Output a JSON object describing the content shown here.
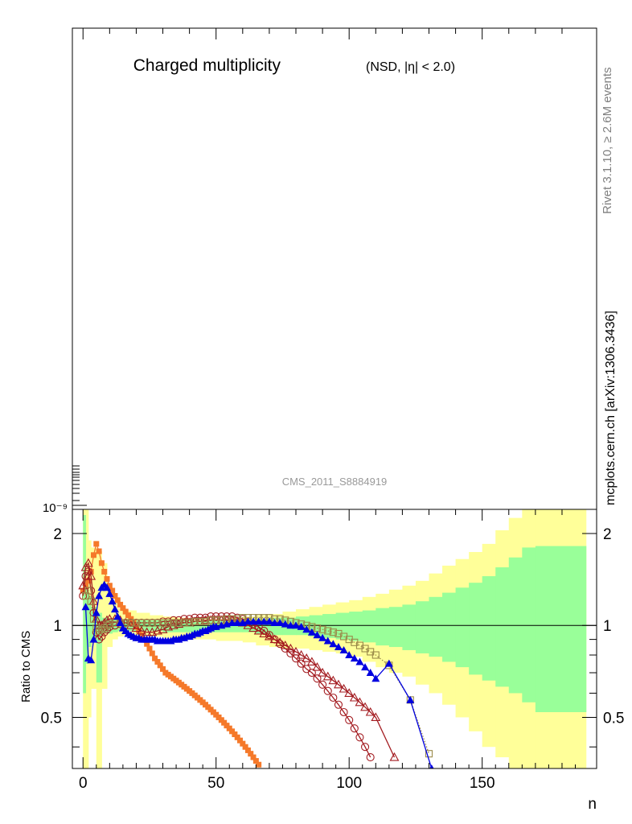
{
  "main_panel": {
    "title": "Charged multiplicity",
    "subtitle": "(NSD, |η| < 2.0)",
    "side_label_top": "Rivet 3.1.10, ≥ 2.6M events",
    "side_label_bottom": "mcplots.cern.ch [arXiv:1306.3436]",
    "watermark": "CMS_2011_S8884919",
    "y_tick_label": "10⁻⁹"
  },
  "chart_data": {
    "type": "line",
    "xlabel": "n",
    "ylabel": "Ratio to CMS",
    "xlim": [
      -4,
      193
    ],
    "ylim": [
      0.34,
      2.4
    ],
    "y_scale": "log",
    "x_ticks": [
      0,
      50,
      100,
      150
    ],
    "x_tick_labels": [
      "0",
      "50",
      "100",
      "150"
    ],
    "y_ticks": [
      0.5,
      1,
      2
    ],
    "y_tick_labels": [
      "0.5",
      "1",
      "2"
    ],
    "reference_line": 1,
    "colors": {
      "band_outer": "#ffff99",
      "band_inner": "#99ff99",
      "orange": "#f5792a",
      "darkred": "#a31b20",
      "olive": "#9a8a4a",
      "blue": "#0000e0",
      "frame": "#000000"
    },
    "bands": {
      "edges": [
        0,
        1,
        2,
        3,
        5,
        7,
        9,
        11,
        13,
        15,
        20,
        25,
        30,
        35,
        40,
        45,
        50,
        55,
        60,
        65,
        70,
        75,
        80,
        85,
        90,
        95,
        100,
        105,
        110,
        115,
        120,
        125,
        130,
        135,
        140,
        145,
        150,
        155,
        160,
        165,
        170,
        189
      ],
      "outer_lo": [
        0.34,
        0.34,
        0.5,
        0.62,
        0.34,
        0.62,
        0.85,
        0.9,
        0.92,
        0.93,
        0.93,
        0.92,
        0.91,
        0.91,
        0.9,
        0.9,
        0.89,
        0.89,
        0.88,
        0.86,
        0.85,
        0.84,
        0.84,
        0.83,
        0.82,
        0.81,
        0.79,
        0.76,
        0.73,
        0.7,
        0.68,
        0.64,
        0.6,
        0.55,
        0.5,
        0.45,
        0.4,
        0.37,
        0.34,
        0.34,
        0.34
      ],
      "outer_hi": [
        2.4,
        2.4,
        1.9,
        1.8,
        1.75,
        1.6,
        1.3,
        1.2,
        1.14,
        1.12,
        1.1,
        1.08,
        1.07,
        1.06,
        1.05,
        1.05,
        1.05,
        1.06,
        1.07,
        1.08,
        1.09,
        1.11,
        1.13,
        1.15,
        1.17,
        1.19,
        1.21,
        1.24,
        1.27,
        1.31,
        1.35,
        1.4,
        1.48,
        1.57,
        1.65,
        1.74,
        1.85,
        2.05,
        2.25,
        2.4,
        2.4
      ],
      "inner_lo": [
        0.6,
        0.75,
        0.85,
        0.9,
        0.65,
        0.95,
        0.94,
        0.95,
        0.96,
        0.96,
        0.96,
        0.96,
        0.95,
        0.95,
        0.95,
        0.95,
        0.95,
        0.95,
        0.95,
        0.94,
        0.93,
        0.93,
        0.93,
        0.92,
        0.91,
        0.9,
        0.89,
        0.88,
        0.86,
        0.85,
        0.83,
        0.81,
        0.79,
        0.76,
        0.73,
        0.69,
        0.66,
        0.63,
        0.6,
        0.56,
        0.52
      ],
      "inner_hi": [
        2.3,
        1.4,
        1.25,
        1.15,
        1.1,
        1.06,
        1.05,
        1.05,
        1.04,
        1.04,
        1.04,
        1.04,
        1.04,
        1.04,
        1.04,
        1.04,
        1.04,
        1.04,
        1.05,
        1.05,
        1.06,
        1.06,
        1.07,
        1.08,
        1.09,
        1.1,
        1.11,
        1.12,
        1.14,
        1.15,
        1.17,
        1.2,
        1.24,
        1.28,
        1.33,
        1.38,
        1.45,
        1.55,
        1.67,
        1.8,
        1.82
      ]
    },
    "series": [
      {
        "key": "orange",
        "marker": "filled-square",
        "style": "solid",
        "x": [
          0,
          1,
          2,
          3,
          4,
          5,
          6,
          7,
          8,
          9,
          10,
          11,
          12,
          13,
          14,
          15,
          16,
          17,
          18,
          19,
          20,
          21,
          22,
          23,
          24,
          25,
          26,
          27,
          28,
          29,
          30,
          31,
          32,
          33,
          34,
          35,
          36,
          37,
          38,
          39,
          40,
          41,
          42,
          43,
          44,
          45,
          46,
          47,
          48,
          49,
          50,
          51,
          52,
          53,
          54,
          55,
          56,
          57,
          58,
          59,
          60,
          61,
          62,
          63,
          64,
          65,
          66
        ],
        "y": [
          1.3,
          1.35,
          1.4,
          1.5,
          1.7,
          1.85,
          1.75,
          1.6,
          1.5,
          1.42,
          1.35,
          1.3,
          1.25,
          1.21,
          1.17,
          1.14,
          1.11,
          1.08,
          1.05,
          1.02,
          0.99,
          0.96,
          0.93,
          0.9,
          0.87,
          0.84,
          0.81,
          0.78,
          0.76,
          0.74,
          0.72,
          0.7,
          0.69,
          0.68,
          0.67,
          0.66,
          0.65,
          0.64,
          0.63,
          0.62,
          0.61,
          0.6,
          0.59,
          0.58,
          0.57,
          0.56,
          0.55,
          0.54,
          0.53,
          0.52,
          0.51,
          0.5,
          0.49,
          0.48,
          0.47,
          0.46,
          0.45,
          0.44,
          0.43,
          0.42,
          0.41,
          0.4,
          0.39,
          0.38,
          0.37,
          0.36,
          0.35
        ]
      },
      {
        "key": "darkred",
        "marker": "open-triangle",
        "style": "solid",
        "x": [
          0,
          1,
          2,
          3,
          4,
          5,
          6,
          7,
          8,
          9,
          10,
          12,
          14,
          16,
          18,
          20,
          22,
          24,
          26,
          28,
          30,
          32,
          34,
          36,
          38,
          40,
          42,
          44,
          46,
          48,
          50,
          52,
          54,
          56,
          58,
          60,
          62,
          64,
          66,
          68,
          70,
          72,
          74,
          76,
          78,
          80,
          82,
          84,
          86,
          88,
          90,
          92,
          94,
          96,
          98,
          100,
          102,
          104,
          106,
          108,
          110,
          117
        ],
        "y": [
          1.35,
          1.55,
          1.6,
          1.45,
          1.2,
          1.05,
          1.0,
          1.0,
          1.02,
          1.04,
          1.05,
          1.05,
          1.04,
          1.02,
          1.0,
          0.98,
          0.96,
          0.95,
          0.95,
          0.96,
          0.97,
          0.99,
          1.0,
          1.01,
          1.02,
          1.02,
          1.03,
          1.03,
          1.04,
          1.04,
          1.04,
          1.04,
          1.04,
          1.04,
          1.03,
          1.02,
          1.0,
          0.98,
          0.96,
          0.94,
          0.92,
          0.9,
          0.88,
          0.86,
          0.84,
          0.82,
          0.8,
          0.78,
          0.76,
          0.73,
          0.7,
          0.68,
          0.66,
          0.64,
          0.62,
          0.6,
          0.58,
          0.56,
          0.54,
          0.52,
          0.5,
          0.37
        ]
      },
      {
        "key": "darkred",
        "marker": "open-circle",
        "style": "solid",
        "x": [
          0,
          1,
          2,
          3,
          4,
          5,
          6,
          7,
          8,
          9,
          10,
          12,
          14,
          16,
          18,
          20,
          22,
          24,
          26,
          28,
          30,
          32,
          34,
          36,
          38,
          40,
          42,
          44,
          46,
          48,
          50,
          52,
          54,
          56,
          58,
          60,
          62,
          64,
          66,
          68,
          70,
          72,
          74,
          76,
          78,
          80,
          82,
          84,
          86,
          88,
          90,
          92,
          94,
          96,
          98,
          100,
          102,
          104,
          106,
          108
        ],
        "y": [
          1.25,
          1.45,
          1.5,
          1.3,
          1.1,
          0.95,
          0.9,
          0.92,
          0.95,
          0.97,
          0.99,
          1.0,
          1.01,
          1.02,
          1.02,
          1.02,
          1.02,
          1.02,
          1.02,
          1.02,
          1.03,
          1.03,
          1.04,
          1.04,
          1.05,
          1.05,
          1.06,
          1.06,
          1.06,
          1.07,
          1.07,
          1.07,
          1.07,
          1.07,
          1.06,
          1.05,
          1.03,
          1.01,
          0.99,
          0.96,
          0.93,
          0.9,
          0.87,
          0.84,
          0.81,
          0.78,
          0.75,
          0.72,
          0.7,
          0.67,
          0.64,
          0.61,
          0.58,
          0.55,
          0.52,
          0.49,
          0.46,
          0.43,
          0.4,
          0.37
        ]
      },
      {
        "key": "olive",
        "marker": "open-square",
        "style": "dotted",
        "x": [
          1,
          2,
          3,
          4,
          5,
          6,
          7,
          8,
          9,
          10,
          12,
          14,
          16,
          18,
          20,
          22,
          24,
          26,
          28,
          30,
          32,
          34,
          36,
          38,
          40,
          42,
          44,
          46,
          48,
          50,
          52,
          54,
          56,
          58,
          60,
          62,
          64,
          66,
          68,
          70,
          72,
          74,
          76,
          78,
          80,
          82,
          84,
          86,
          88,
          90,
          92,
          94,
          96,
          98,
          100,
          102,
          104,
          106,
          108,
          110,
          115,
          123,
          130
        ],
        "y": [
          1.25,
          1.3,
          1.2,
          1.05,
          0.98,
          0.96,
          0.97,
          0.98,
          1.0,
          1.01,
          1.02,
          1.02,
          1.02,
          1.02,
          1.02,
          1.02,
          1.02,
          1.02,
          1.02,
          1.02,
          1.02,
          1.02,
          1.02,
          1.02,
          1.02,
          1.03,
          1.03,
          1.03,
          1.04,
          1.04,
          1.04,
          1.05,
          1.05,
          1.05,
          1.06,
          1.06,
          1.06,
          1.06,
          1.06,
          1.06,
          1.05,
          1.05,
          1.04,
          1.03,
          1.02,
          1.01,
          1.0,
          0.99,
          0.98,
          0.97,
          0.96,
          0.95,
          0.94,
          0.92,
          0.9,
          0.88,
          0.86,
          0.84,
          0.82,
          0.8,
          0.74,
          0.57,
          0.38
        ]
      },
      {
        "key": "blue",
        "marker": "filled-triangle",
        "style": "solid",
        "x": [
          1,
          2,
          3,
          4,
          5,
          6,
          7,
          8,
          9,
          10,
          11,
          12,
          13,
          14,
          15,
          16,
          17,
          18,
          19,
          20,
          21,
          22,
          23,
          24,
          25,
          26,
          27,
          28,
          29,
          30,
          31,
          32,
          33,
          34,
          35,
          36,
          37,
          38,
          39,
          40,
          41,
          42,
          43,
          44,
          45,
          46,
          47,
          48,
          49,
          50,
          52,
          54,
          56,
          58,
          60,
          62,
          64,
          66,
          68,
          70,
          72,
          74,
          76,
          78,
          80,
          82,
          84,
          86,
          88,
          90,
          92,
          94,
          96,
          98,
          100,
          102,
          104,
          106,
          108,
          110,
          115,
          123,
          131
        ],
        "y": [
          1.15,
          0.78,
          0.77,
          0.9,
          1.1,
          1.25,
          1.33,
          1.36,
          1.33,
          1.27,
          1.2,
          1.13,
          1.07,
          1.02,
          0.98,
          0.96,
          0.94,
          0.93,
          0.92,
          0.91,
          0.91,
          0.9,
          0.9,
          0.9,
          0.9,
          0.9,
          0.9,
          0.89,
          0.89,
          0.89,
          0.89,
          0.89,
          0.89,
          0.9,
          0.9,
          0.9,
          0.91,
          0.91,
          0.92,
          0.92,
          0.93,
          0.94,
          0.94,
          0.95,
          0.96,
          0.96,
          0.97,
          0.98,
          0.99,
          0.99,
          1.0,
          1.01,
          1.02,
          1.02,
          1.02,
          1.03,
          1.03,
          1.03,
          1.03,
          1.03,
          1.02,
          1.02,
          1.01,
          1.0,
          1.0,
          0.99,
          0.97,
          0.95,
          0.93,
          0.91,
          0.89,
          0.87,
          0.85,
          0.83,
          0.8,
          0.78,
          0.76,
          0.73,
          0.7,
          0.67,
          0.75,
          0.57,
          0.34
        ]
      }
    ]
  }
}
